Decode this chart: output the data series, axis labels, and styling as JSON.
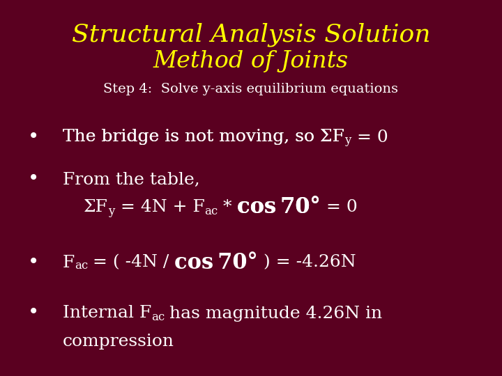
{
  "background_color": "#5a0020",
  "title_line1": "Structural Analysis Solution",
  "title_line2": "Method of Joints",
  "title_color": "#ffff00",
  "subtitle": "Step 4:  Solve y-axis equilibrium equations",
  "subtitle_color": "#ffffff",
  "bullet_color": "#ffffff",
  "title1_fontsize": 26,
  "title2_fontsize": 24,
  "subtitle_fontsize": 14,
  "bullet_fontsize": 18,
  "sub_fontsize": 12
}
